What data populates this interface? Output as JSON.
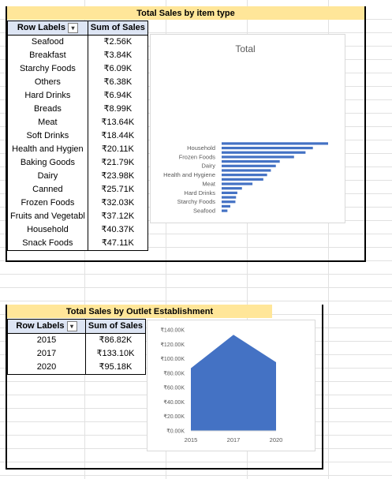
{
  "sheet": {
    "item_section": {
      "title": "Total Sales by item type",
      "pivot": {
        "col_row_labels": "Row Labels",
        "col_sum": "Sum of Sales",
        "filter_icon": "sort-filter-icon",
        "rows": [
          {
            "label": "Seafood",
            "value": "₹2.56K"
          },
          {
            "label": "Breakfast",
            "value": "₹3.84K"
          },
          {
            "label": "Starchy Foods",
            "value": "₹6.09K"
          },
          {
            "label": "Others",
            "value": "₹6.38K"
          },
          {
            "label": "Hard Drinks",
            "value": "₹6.94K"
          },
          {
            "label": "Breads",
            "value": "₹8.99K"
          },
          {
            "label": "Meat",
            "value": "₹13.64K"
          },
          {
            "label": "Soft Drinks",
            "value": "₹18.44K"
          },
          {
            "label": "Health and Hygien",
            "value": "₹20.11K"
          },
          {
            "label": "Baking Goods",
            "value": "₹21.79K"
          },
          {
            "label": "Dairy",
            "value": "₹23.98K"
          },
          {
            "label": "Canned",
            "value": "₹25.71K"
          },
          {
            "label": "Frozen Foods",
            "value": "₹32.03K"
          },
          {
            "label": "Fruits and Vegetabl",
            "value": "₹37.12K"
          },
          {
            "label": "Household",
            "value": "₹40.37K"
          },
          {
            "label": "Snack Foods",
            "value": "₹47.11K"
          }
        ]
      }
    },
    "outlet_section": {
      "title": "Total Sales by Outlet Establishment",
      "pivot": {
        "col_row_labels": "Row Labels",
        "col_sum": "Sum of Sales",
        "filter_icon": "dropdown-filter-icon",
        "rows": [
          {
            "label": "2015",
            "value": "₹86.82K"
          },
          {
            "label": "2017",
            "value": "₹133.10K"
          },
          {
            "label": "2020",
            "value": "₹95.18K"
          }
        ]
      }
    }
  },
  "chart_data": [
    {
      "type": "bar",
      "orientation": "horizontal",
      "title": "Total",
      "categories": [
        "Seafood",
        "Breakfast",
        "Starchy Foods",
        "Others",
        "Hard Drinks",
        "Breads",
        "Meat",
        "Soft Drinks",
        "Health and Hygiene",
        "Baking Goods",
        "Dairy",
        "Canned",
        "Frozen Foods",
        "Fruits and Vegetables",
        "Household",
        "Snack Foods"
      ],
      "category_labels_shown": [
        "Seafood",
        "Starchy Foods",
        "Hard Drinks",
        "Meat",
        "Health and Hygiene",
        "Dairy",
        "Frozen Foods",
        "Household"
      ],
      "values": [
        2.56,
        3.84,
        6.09,
        6.38,
        6.94,
        8.99,
        13.64,
        18.44,
        20.11,
        21.79,
        23.98,
        25.71,
        32.03,
        37.12,
        40.37,
        47.11
      ],
      "unit": "K",
      "bar_color": "#4472c4",
      "legend": "none",
      "grid": false
    },
    {
      "type": "area",
      "title": "",
      "x": [
        "2015",
        "2017",
        "2020"
      ],
      "values": [
        86.82,
        133.1,
        95.18
      ],
      "ylim": [
        0,
        140
      ],
      "yticks": [
        "₹0.00K",
        "₹20.00K",
        "₹40.00K",
        "₹60.00K",
        "₹80.00K",
        "₹100.00K",
        "₹120.00K",
        "₹140.00K"
      ],
      "area_color": "#4472c4",
      "legend": "none",
      "grid": false
    }
  ]
}
